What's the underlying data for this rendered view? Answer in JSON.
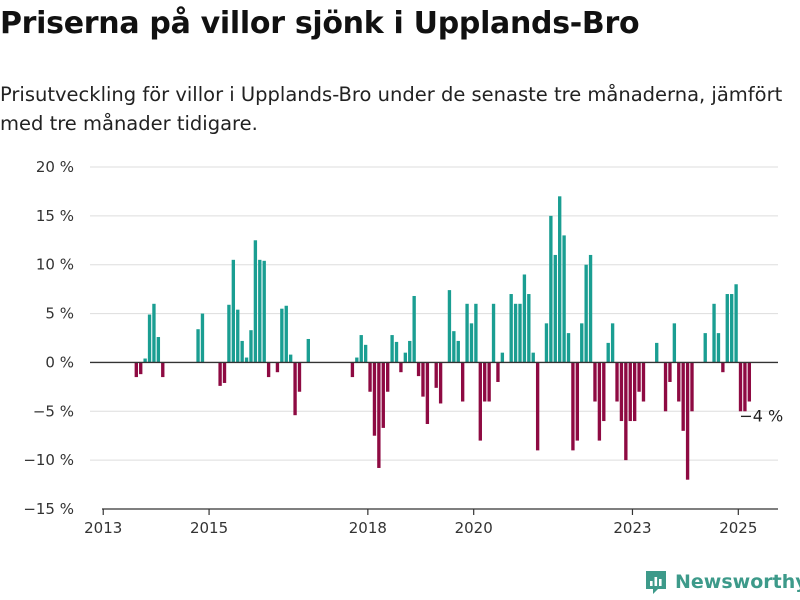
{
  "header": {
    "title": "Priserna på villor sjönk i Upplands-Bro",
    "subtitle": "Prisutveckling för villor i Upplands-Bro under de senaste tre månaderna, jämfört med tre månader tidigare."
  },
  "brand": {
    "name": "Newsworthy"
  },
  "colors": {
    "positive": "#1a9e92",
    "negative": "#8e0a42",
    "grid": "#dddddd",
    "axis": "#333333",
    "brand": "#3d9a8a"
  },
  "chart_data": {
    "type": "bar",
    "ylim": [
      -15,
      20
    ],
    "y_ticks": [
      {
        "value": 20,
        "label": "20 %"
      },
      {
        "value": 15,
        "label": "15 %"
      },
      {
        "value": 10,
        "label": "10 %"
      },
      {
        "value": 5,
        "label": "5 %"
      },
      {
        "value": 0,
        "label": "0 %"
      },
      {
        "value": -5,
        "label": "−5 %"
      },
      {
        "value": -10,
        "label": "−10 %"
      },
      {
        "value": -15,
        "label": "−15 %"
      }
    ],
    "x_ticks": [
      {
        "year": 2013,
        "label": "2013"
      },
      {
        "year": 2015,
        "label": "2015"
      },
      {
        "year": 2018,
        "label": "2018"
      },
      {
        "year": 2020,
        "label": "2020"
      },
      {
        "year": 2023,
        "label": "2023"
      },
      {
        "year": 2025,
        "label": "2025"
      }
    ],
    "x_range": [
      "2012-10",
      "2025-10"
    ],
    "annotation": {
      "date": "2025-03",
      "value": -4,
      "label": "−4 %"
    },
    "series": [
      {
        "values": [
          {
            "date": "2013-08",
            "value": -1.5
          },
          {
            "date": "2013-09",
            "value": -1.2
          },
          {
            "date": "2013-10",
            "value": 0.4
          },
          {
            "date": "2013-11",
            "value": 4.9
          },
          {
            "date": "2013-12",
            "value": 6.0
          },
          {
            "date": "2014-01",
            "value": 2.6
          },
          {
            "date": "2014-02",
            "value": -1.5
          },
          {
            "date": "2014-10",
            "value": 3.4
          },
          {
            "date": "2014-11",
            "value": 5.0
          },
          {
            "date": "2015-03",
            "value": -2.4
          },
          {
            "date": "2015-04",
            "value": -2.1
          },
          {
            "date": "2015-05",
            "value": 5.9
          },
          {
            "date": "2015-06",
            "value": 10.5
          },
          {
            "date": "2015-07",
            "value": 5.4
          },
          {
            "date": "2015-08",
            "value": 2.2
          },
          {
            "date": "2015-09",
            "value": 0.5
          },
          {
            "date": "2015-10",
            "value": 3.3
          },
          {
            "date": "2015-11",
            "value": 12.5
          },
          {
            "date": "2015-12",
            "value": 10.5
          },
          {
            "date": "2016-01",
            "value": 10.4
          },
          {
            "date": "2016-02",
            "value": -1.5
          },
          {
            "date": "2016-04",
            "value": -1.0
          },
          {
            "date": "2016-05",
            "value": 5.5
          },
          {
            "date": "2016-06",
            "value": 5.8
          },
          {
            "date": "2016-07",
            "value": 0.8
          },
          {
            "date": "2016-08",
            "value": -5.4
          },
          {
            "date": "2016-09",
            "value": -3.0
          },
          {
            "date": "2016-11",
            "value": 2.4
          },
          {
            "date": "2017-09",
            "value": -1.5
          },
          {
            "date": "2017-10",
            "value": 0.5
          },
          {
            "date": "2017-11",
            "value": 2.8
          },
          {
            "date": "2017-12",
            "value": 1.8
          },
          {
            "date": "2018-01",
            "value": -3.0
          },
          {
            "date": "2018-02",
            "value": -7.5
          },
          {
            "date": "2018-03",
            "value": -10.8
          },
          {
            "date": "2018-04",
            "value": -6.7
          },
          {
            "date": "2018-05",
            "value": -3.0
          },
          {
            "date": "2018-06",
            "value": 2.8
          },
          {
            "date": "2018-07",
            "value": 2.1
          },
          {
            "date": "2018-08",
            "value": -1.0
          },
          {
            "date": "2018-09",
            "value": 1.0
          },
          {
            "date": "2018-10",
            "value": 2.2
          },
          {
            "date": "2018-11",
            "value": 6.8
          },
          {
            "date": "2018-12",
            "value": -1.4
          },
          {
            "date": "2019-01",
            "value": -3.5
          },
          {
            "date": "2019-02",
            "value": -6.3
          },
          {
            "date": "2019-04",
            "value": -2.6
          },
          {
            "date": "2019-05",
            "value": -4.2
          },
          {
            "date": "2019-07",
            "value": 7.4
          },
          {
            "date": "2019-08",
            "value": 3.2
          },
          {
            "date": "2019-09",
            "value": 2.2
          },
          {
            "date": "2019-10",
            "value": -4.0
          },
          {
            "date": "2019-11",
            "value": 6.0
          },
          {
            "date": "2019-12",
            "value": 4.0
          },
          {
            "date": "2020-01",
            "value": 6.0
          },
          {
            "date": "2020-02",
            "value": -8.0
          },
          {
            "date": "2020-03",
            "value": -4.0
          },
          {
            "date": "2020-04",
            "value": -4.0
          },
          {
            "date": "2020-05",
            "value": 6.0
          },
          {
            "date": "2020-06",
            "value": -2.0
          },
          {
            "date": "2020-07",
            "value": 1.0
          },
          {
            "date": "2020-09",
            "value": 7.0
          },
          {
            "date": "2020-10",
            "value": 6.0
          },
          {
            "date": "2020-11",
            "value": 6.0
          },
          {
            "date": "2020-12",
            "value": 9.0
          },
          {
            "date": "2021-01",
            "value": 7.0
          },
          {
            "date": "2021-02",
            "value": 1.0
          },
          {
            "date": "2021-03",
            "value": -9.0
          },
          {
            "date": "2021-05",
            "value": 4.0
          },
          {
            "date": "2021-06",
            "value": 15.0
          },
          {
            "date": "2021-07",
            "value": 11.0
          },
          {
            "date": "2021-08",
            "value": 17.0
          },
          {
            "date": "2021-09",
            "value": 13.0
          },
          {
            "date": "2021-10",
            "value": 3.0
          },
          {
            "date": "2021-11",
            "value": -9.0
          },
          {
            "date": "2021-12",
            "value": -8.0
          },
          {
            "date": "2022-01",
            "value": 4.0
          },
          {
            "date": "2022-02",
            "value": 10.0
          },
          {
            "date": "2022-03",
            "value": 11.0
          },
          {
            "date": "2022-04",
            "value": -4.0
          },
          {
            "date": "2022-05",
            "value": -8.0
          },
          {
            "date": "2022-06",
            "value": -6.0
          },
          {
            "date": "2022-07",
            "value": 2.0
          },
          {
            "date": "2022-08",
            "value": 4.0
          },
          {
            "date": "2022-09",
            "value": -4.0
          },
          {
            "date": "2022-10",
            "value": -6.0
          },
          {
            "date": "2022-11",
            "value": -10.0
          },
          {
            "date": "2022-12",
            "value": -6.0
          },
          {
            "date": "2023-01",
            "value": -6.0
          },
          {
            "date": "2023-02",
            "value": -3.0
          },
          {
            "date": "2023-03",
            "value": -4.0
          },
          {
            "date": "2023-06",
            "value": 2.0
          },
          {
            "date": "2023-08",
            "value": -5.0
          },
          {
            "date": "2023-09",
            "value": -2.0
          },
          {
            "date": "2023-10",
            "value": 4.0
          },
          {
            "date": "2023-11",
            "value": -4.0
          },
          {
            "date": "2023-12",
            "value": -7.0
          },
          {
            "date": "2024-01",
            "value": -12.0
          },
          {
            "date": "2024-02",
            "value": -5.0
          },
          {
            "date": "2024-05",
            "value": 3.0
          },
          {
            "date": "2024-07",
            "value": 6.0
          },
          {
            "date": "2024-08",
            "value": 3.0
          },
          {
            "date": "2024-09",
            "value": -1.0
          },
          {
            "date": "2024-10",
            "value": 7.0
          },
          {
            "date": "2024-11",
            "value": 7.0
          },
          {
            "date": "2024-12",
            "value": 8.0
          },
          {
            "date": "2025-01",
            "value": -5.0
          },
          {
            "date": "2025-02",
            "value": -5.0
          },
          {
            "date": "2025-03",
            "value": -4.0
          }
        ]
      }
    ]
  }
}
